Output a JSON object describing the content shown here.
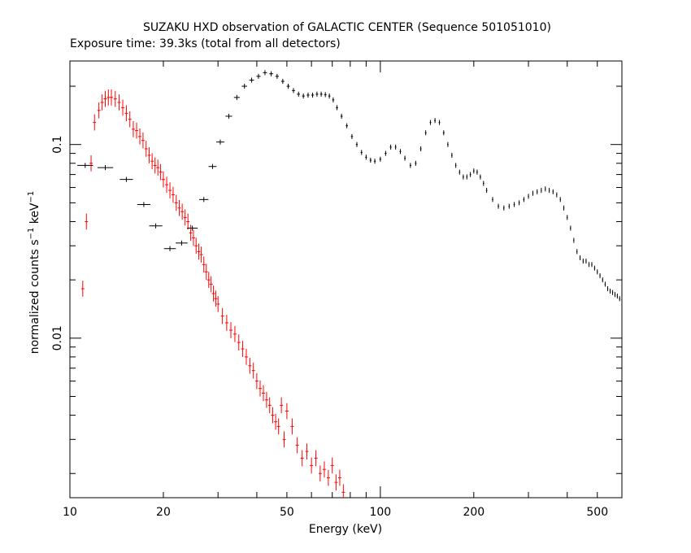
{
  "chart_data": {
    "type": "scatter",
    "title": "SUZAKU HXD observation of GALACTIC CENTER (Sequence 501051010)",
    "subtitle": "Exposure time: 39.3ks (total from all detectors)",
    "xlabel": "Energy (keV)",
    "ylabel_main": "normalized counts s",
    "ylabel_sup1": "−1",
    "ylabel_mid": " keV",
    "ylabel_sup2": "−1",
    "x_scale": "log",
    "y_scale": "log",
    "xlim": [
      10,
      600
    ],
    "ylim": [
      0.0015,
      0.27
    ],
    "x_tick_labels": [
      {
        "value": 10,
        "label": "10"
      },
      {
        "value": 20,
        "label": "20"
      },
      {
        "value": 50,
        "label": "50"
      },
      {
        "value": 100,
        "label": "100"
      },
      {
        "value": 200,
        "label": "200"
      },
      {
        "value": 500,
        "label": "500"
      }
    ],
    "y_tick_labels": [
      {
        "value": 0.1,
        "label": "0.1"
      },
      {
        "value": 0.01,
        "label": "0.01"
      }
    ],
    "grid": false,
    "legend": "none",
    "series": [
      {
        "color": "#ff0000",
        "x": [
          11.0,
          11.3,
          11.7,
          12.0,
          12.4,
          12.7,
          13.0,
          13.3,
          13.6,
          14.0,
          14.4,
          14.8,
          15.2,
          15.6,
          16.0,
          16.4,
          16.8,
          17.2,
          17.6,
          18.0,
          18.4,
          18.8,
          19.2,
          19.6,
          20.0,
          20.5,
          21.0,
          21.5,
          22.0,
          22.5,
          23.0,
          23.5,
          24.0,
          24.5,
          25.0,
          25.5,
          26.0,
          26.5,
          27.0,
          27.5,
          28.0,
          28.5,
          29.0,
          29.5,
          30.0,
          31.0,
          32.0,
          33.0,
          34.0,
          35.0,
          36.0,
          37.0,
          38.0,
          39.0,
          40.0,
          41.0,
          42.0,
          43.0,
          44.0,
          45.0,
          46.0,
          47.0,
          48.0,
          49.0,
          50.0,
          52.0,
          54.0,
          56.0,
          58.0,
          60.0,
          62.0,
          64.0,
          66.0,
          68.0,
          70.0,
          72.0,
          74.0,
          76.0
        ],
        "y": [
          0.018,
          0.04,
          0.08,
          0.13,
          0.15,
          0.165,
          0.172,
          0.175,
          0.175,
          0.172,
          0.165,
          0.155,
          0.145,
          0.135,
          0.12,
          0.118,
          0.11,
          0.105,
          0.095,
          0.088,
          0.082,
          0.078,
          0.076,
          0.072,
          0.066,
          0.062,
          0.058,
          0.055,
          0.05,
          0.047,
          0.045,
          0.042,
          0.04,
          0.035,
          0.033,
          0.03,
          0.028,
          0.027,
          0.024,
          0.022,
          0.02,
          0.019,
          0.017,
          0.016,
          0.015,
          0.013,
          0.012,
          0.011,
          0.0105,
          0.0095,
          0.0088,
          0.008,
          0.0072,
          0.0068,
          0.006,
          0.0055,
          0.0052,
          0.0048,
          0.0045,
          0.004,
          0.0037,
          0.0035,
          0.0045,
          0.003,
          0.0042,
          0.0035,
          0.0028,
          0.0024,
          0.0026,
          0.0022,
          0.0024,
          0.002,
          0.0021,
          0.0019,
          0.0022,
          0.0018,
          0.0019,
          0.0016
        ],
        "err_rel": 0.1
      },
      {
        "color": "#000000",
        "x": [
          11.2,
          13.0,
          15.2,
          17.3,
          18.9,
          21.0,
          22.9,
          24.8,
          27.0,
          28.8,
          30.5,
          32.5,
          34.5,
          36.5,
          38.5,
          40.5,
          42.5,
          44.5,
          46.5,
          48.5,
          50.5,
          52.5,
          54.5,
          56.5,
          58.5,
          60.5,
          62.5,
          64.5,
          66.5,
          68.5,
          70.5,
          72.5,
          75.0,
          78.0,
          81.0,
          84.0,
          87.0,
          90.0,
          93.0,
          96.0,
          100.0,
          104.0,
          108.0,
          112.0,
          116.0,
          120.0,
          125.0,
          130.0,
          135.0,
          140.0,
          145.0,
          150.0,
          155.0,
          160.0,
          165.0,
          170.0,
          175.0,
          180.0,
          185.0,
          190.0,
          195.0,
          200.0,
          205.0,
          210.0,
          215.0,
          220.0,
          230.0,
          240.0,
          250.0,
          260.0,
          270.0,
          280.0,
          290.0,
          300.0,
          310.0,
          320.0,
          330.0,
          340.0,
          350.0,
          360.0,
          370.0,
          380.0,
          390.0,
          400.0,
          410.0,
          420.0,
          430.0,
          440.0,
          450.0,
          460.0,
          470.0,
          480.0,
          490.0,
          500.0,
          510.0,
          520.0,
          530.0,
          540.0,
          550.0,
          560.0,
          570.0,
          580.0,
          590.0,
          600.0
        ],
        "x_half_width_rel": [
          0.06,
          0.06,
          0.05,
          0.05,
          0.05,
          0.045,
          0.045,
          0.04,
          0.035,
          0.03,
          0.03,
          0.025,
          0.022,
          0.02,
          0.018,
          0.016,
          0.015,
          0.014,
          0.013,
          0.012,
          0.012,
          0.011,
          0.011,
          0.01,
          0.01,
          0.01,
          0.009,
          0.009,
          0.009,
          0.008,
          0.008,
          0.008,
          0.008,
          0.008,
          0.008,
          0.007,
          0.007,
          0.007,
          0.007,
          0.007,
          0.007,
          0.007,
          0.007,
          0.006,
          0.006,
          0.006,
          0.006,
          0.006,
          0.006,
          0.006,
          0.006,
          0.006,
          0.006,
          0.006,
          0.005,
          0.005,
          0.005,
          0.005,
          0.005,
          0.005,
          0.005,
          0.005,
          0.005,
          0.005,
          0.005,
          0.005,
          0.005,
          0.005,
          0.005,
          0.005,
          0.005,
          0.005,
          0.005,
          0.004,
          0.004,
          0.004,
          0.004,
          0.004,
          0.004,
          0.004,
          0.004,
          0.004,
          0.004,
          0.004,
          0.004,
          0.004,
          0.004,
          0.004,
          0.004,
          0.004,
          0.004,
          0.004,
          0.004,
          0.004,
          0.004,
          0.004,
          0.004,
          0.004,
          0.004,
          0.004,
          0.004,
          0.004,
          0.004,
          0.004
        ],
        "y": [
          0.078,
          0.076,
          0.066,
          0.049,
          0.038,
          0.029,
          0.031,
          0.037,
          0.052,
          0.077,
          0.103,
          0.14,
          0.175,
          0.2,
          0.215,
          0.225,
          0.235,
          0.232,
          0.225,
          0.212,
          0.2,
          0.19,
          0.182,
          0.178,
          0.18,
          0.18,
          0.182,
          0.182,
          0.181,
          0.178,
          0.17,
          0.155,
          0.14,
          0.125,
          0.11,
          0.1,
          0.091,
          0.086,
          0.083,
          0.082,
          0.084,
          0.09,
          0.097,
          0.097,
          0.092,
          0.085,
          0.078,
          0.08,
          0.095,
          0.115,
          0.13,
          0.133,
          0.13,
          0.115,
          0.1,
          0.088,
          0.078,
          0.072,
          0.068,
          0.068,
          0.07,
          0.073,
          0.072,
          0.068,
          0.063,
          0.058,
          0.052,
          0.048,
          0.047,
          0.048,
          0.049,
          0.05,
          0.052,
          0.054,
          0.056,
          0.057,
          0.058,
          0.059,
          0.058,
          0.057,
          0.055,
          0.052,
          0.047,
          0.042,
          0.037,
          0.032,
          0.028,
          0.026,
          0.025,
          0.025,
          0.024,
          0.024,
          0.023,
          0.022,
          0.021,
          0.02,
          0.019,
          0.018,
          0.0175,
          0.0172,
          0.0168,
          0.0165,
          0.016,
          0.0158
        ],
        "err_rel": 0.03
      }
    ]
  }
}
